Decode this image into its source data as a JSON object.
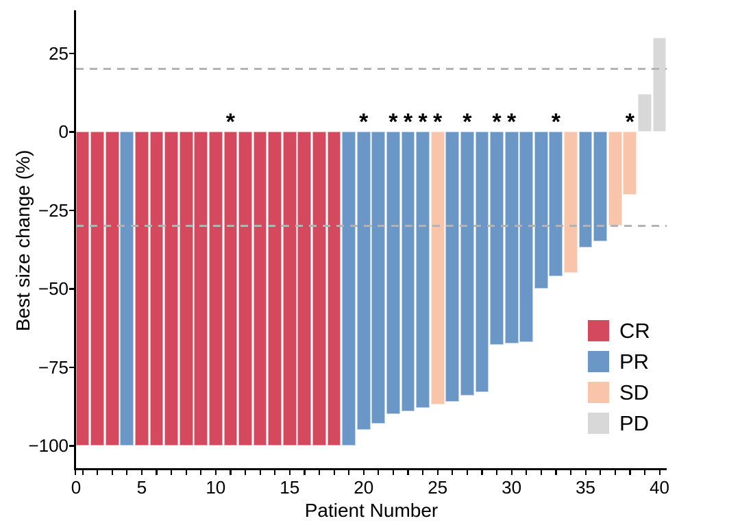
{
  "chart_data": {
    "type": "bar",
    "title": "",
    "xlabel": "Patient Number",
    "ylabel": "Best size change (%)",
    "patients": [
      1,
      2,
      3,
      4,
      5,
      6,
      7,
      8,
      9,
      10,
      11,
      12,
      13,
      14,
      15,
      16,
      17,
      18,
      19,
      20,
      21,
      22,
      23,
      24,
      25,
      26,
      27,
      28,
      29,
      30,
      31,
      32,
      33,
      34,
      35,
      36,
      37,
      38,
      39,
      40
    ],
    "values": [
      -100,
      -100,
      -100,
      -100,
      -100,
      -100,
      -100,
      -100,
      -100,
      -100,
      -100,
      -100,
      -100,
      -100,
      -100,
      -100,
      -100,
      -100,
      -100,
      -95,
      -93,
      -90,
      -89,
      -88,
      -87,
      -86,
      -84,
      -83,
      -68,
      -67.5,
      -67,
      -50,
      -46,
      -45,
      -37,
      -35,
      -30,
      -20,
      12,
      30
    ],
    "responses": [
      "CR",
      "CR",
      "CR",
      "PR",
      "CR",
      "CR",
      "CR",
      "CR",
      "CR",
      "CR",
      "CR",
      "CR",
      "CR",
      "CR",
      "CR",
      "CR",
      "CR",
      "CR",
      "PR",
      "PR",
      "PR",
      "PR",
      "PR",
      "PR",
      "SD",
      "PR",
      "PR",
      "PR",
      "PR",
      "PR",
      "PR",
      "PR",
      "PR",
      "SD",
      "PR",
      "PR",
      "SD",
      "SD",
      "PD",
      "PD"
    ],
    "asterisk_symbol": "*",
    "asterisk_patients": [
      11,
      20,
      22,
      23,
      24,
      25,
      27,
      29,
      30,
      33,
      38
    ],
    "reference_lines_y": [
      20,
      -30
    ],
    "reference_line_color": "#b3b3b3",
    "ylim": [
      -110,
      38
    ],
    "xlim": [
      0,
      41.2
    ],
    "grid": false,
    "ytick_values": [
      25,
      0,
      -25,
      -50,
      -75,
      -100
    ],
    "ytick_labels": [
      "25",
      "0",
      "−25",
      "−50",
      "−75",
      "−100"
    ],
    "xtick_minor_values": [
      0,
      1,
      2,
      3,
      4,
      5,
      6,
      7,
      8,
      9,
      10,
      11,
      12,
      13,
      14,
      15,
      16,
      17,
      18,
      19,
      20,
      21,
      22,
      23,
      24,
      25,
      26,
      27,
      28,
      29,
      30,
      31,
      32,
      33,
      34,
      35,
      36,
      37,
      38,
      39,
      40
    ],
    "xtick_label_values": [
      0,
      5,
      10,
      15,
      20,
      25,
      30,
      35,
      40
    ],
    "xtick_labels": [
      "0",
      "5",
      "10",
      "15",
      "20",
      "25",
      "30",
      "35",
      "40"
    ],
    "legend_position": "inside-lower-right",
    "legend": [
      {
        "label": "CR",
        "color": "#d5495f"
      },
      {
        "label": "PR",
        "color": "#6a97c6"
      },
      {
        "label": "SD",
        "color": "#f8c4aa"
      },
      {
        "label": "PD",
        "color": "#d8d8d8"
      }
    ],
    "axis_color": "#000000",
    "background_color": "#ffffff"
  }
}
